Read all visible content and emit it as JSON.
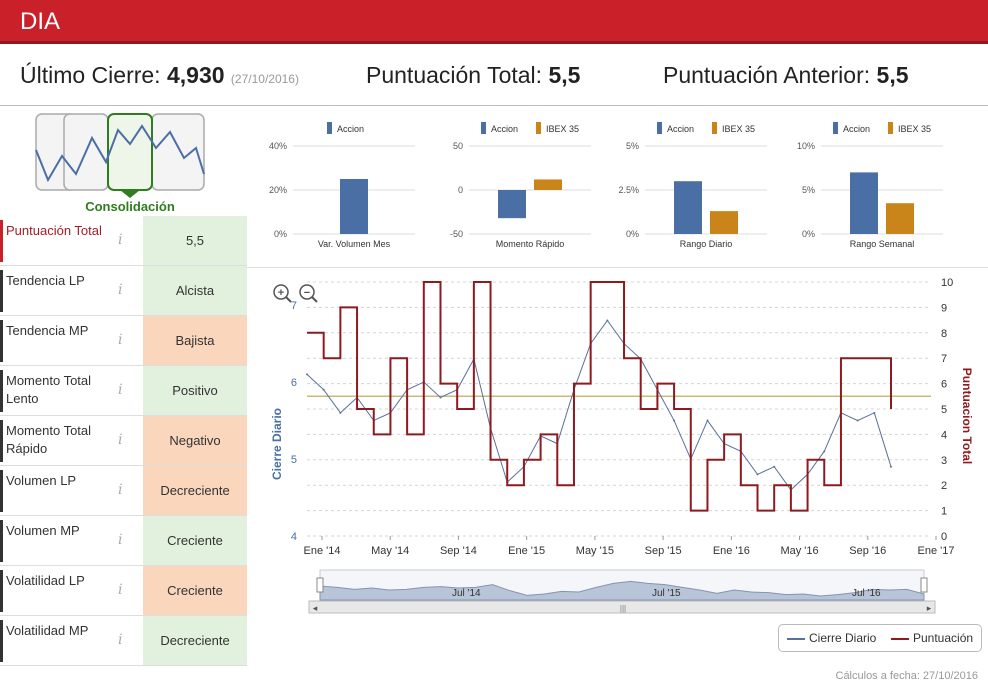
{
  "header": {
    "title": "DIA"
  },
  "summary": {
    "close_label": "Último Cierre:",
    "close_value": "4,930",
    "close_date": "(27/10/2016)",
    "score_label": "Puntuación Total:",
    "score_value": "5,5",
    "prev_label": "Puntuación Anterior:",
    "prev_value": "5,5"
  },
  "consolidation": {
    "label": "Consolidación"
  },
  "metrics": [
    {
      "name": "Puntuación Total",
      "value": "5,5",
      "tone": "green",
      "highlight": true
    },
    {
      "name": "Tendencia LP",
      "value": "Alcista",
      "tone": "green"
    },
    {
      "name": "Tendencia MP",
      "value": "Bajista",
      "tone": "orange"
    },
    {
      "name": "Momento Total Lento",
      "value": "Positivo",
      "tone": "green"
    },
    {
      "name": "Momento Total Rápido",
      "value": "Negativo",
      "tone": "orange"
    },
    {
      "name": "Volumen LP",
      "value": "Decreciente",
      "tone": "orange"
    },
    {
      "name": "Volumen MP",
      "value": "Creciente",
      "tone": "green"
    },
    {
      "name": "Volatilidad LP",
      "value": "Creciente",
      "tone": "orange"
    },
    {
      "name": "Volatilidad MP",
      "value": "Decreciente",
      "tone": "green"
    }
  ],
  "info_glyph": "i",
  "colors": {
    "accion": "#4a6fa5",
    "ibex": "#c9851a",
    "score_line": "#8e1a1f",
    "price_line": "#5a6f9a",
    "header": "#c9202a"
  },
  "chart_data": [
    {
      "type": "bar",
      "xlabel": "Var. Volumen Mes",
      "series": [
        {
          "name": "Accion",
          "values": [
            25
          ]
        }
      ],
      "yticks": [
        "40%",
        "20%",
        "0%"
      ],
      "ylim": [
        0,
        40
      ]
    },
    {
      "type": "bar",
      "xlabel": "Momento Rápido",
      "series": [
        {
          "name": "Accion",
          "values": [
            -32
          ]
        },
        {
          "name": "IBEX 35",
          "values": [
            12
          ]
        }
      ],
      "yticks": [
        "50",
        "0",
        "-50"
      ],
      "ylim": [
        -50,
        50
      ]
    },
    {
      "type": "bar",
      "xlabel": "Rango Diario",
      "series": [
        {
          "name": "Accion",
          "values": [
            3.0
          ]
        },
        {
          "name": "IBEX 35",
          "values": [
            1.3
          ]
        }
      ],
      "yticks": [
        "5%",
        "2.5%",
        "0%"
      ],
      "ylim": [
        0,
        5
      ]
    },
    {
      "type": "bar",
      "xlabel": "Rango Semanal",
      "series": [
        {
          "name": "Accion",
          "values": [
            7.0
          ]
        },
        {
          "name": "IBEX 35",
          "values": [
            3.5
          ]
        }
      ],
      "yticks": [
        "10%",
        "5%",
        "0%"
      ],
      "ylim": [
        0,
        10
      ]
    },
    {
      "type": "line",
      "ylabel_left": "Cierre Diario",
      "ylabel_right": "Puntuacion Total",
      "yleft_ticks": [
        "7",
        "6",
        "5",
        "4"
      ],
      "yleft_lim": [
        4,
        7.3
      ],
      "yright_ticks": [
        "10",
        "9",
        "8",
        "7",
        "6",
        "5",
        "4",
        "3",
        "2",
        "1",
        "0"
      ],
      "yright_lim": [
        0,
        10
      ],
      "xticks": [
        "Ene '14",
        "May '14",
        "Sep '14",
        "Ene '15",
        "May '15",
        "Sep '15",
        "Ene '16",
        "May '16",
        "Sep '16",
        "Ene '17"
      ],
      "navigator_ticks": [
        "Jul '14",
        "Jul '15",
        "Jul '16"
      ],
      "reference_line": 5.5,
      "series": [
        {
          "name": "Cierre Diario",
          "x": [
            0,
            1,
            2,
            3,
            4,
            5,
            6,
            7,
            8,
            9,
            10,
            11,
            12,
            13,
            14,
            15,
            16,
            17,
            18,
            19,
            20,
            21,
            22,
            23,
            24,
            25,
            26,
            27,
            28,
            29,
            30,
            31,
            32,
            33,
            34,
            35
          ],
          "values": [
            6.1,
            5.9,
            5.6,
            5.8,
            5.5,
            5.6,
            5.9,
            6.0,
            5.8,
            5.9,
            6.3,
            5.4,
            4.7,
            4.9,
            5.3,
            5.2,
            5.9,
            6.5,
            6.8,
            6.5,
            6.3,
            5.9,
            5.5,
            5.0,
            5.5,
            5.2,
            5.1,
            4.8,
            4.9,
            4.6,
            4.8,
            5.1,
            5.6,
            5.5,
            5.6,
            4.9
          ]
        },
        {
          "name": "Puntuación",
          "x": [
            0,
            1,
            2,
            3,
            4,
            5,
            6,
            7,
            8,
            9,
            10,
            11,
            12,
            13,
            14,
            15,
            16,
            17,
            18,
            19,
            20,
            21,
            22,
            23,
            24,
            25,
            26,
            27,
            28,
            29,
            30,
            31,
            32,
            33,
            34,
            35
          ],
          "values": [
            8,
            7,
            9,
            5,
            4,
            7,
            4,
            10,
            6,
            5,
            10,
            3,
            2,
            3,
            4,
            2,
            6,
            10,
            10,
            7,
            5,
            6,
            5,
            1,
            3,
            4,
            2,
            1,
            2,
            1,
            3,
            2,
            7,
            7,
            7,
            5
          ]
        }
      ]
    }
  ],
  "legend": {
    "price": "Cierre Diario",
    "score": "Puntuación"
  },
  "footer": {
    "note": "Cálculos a fecha: 27/10/2016"
  }
}
